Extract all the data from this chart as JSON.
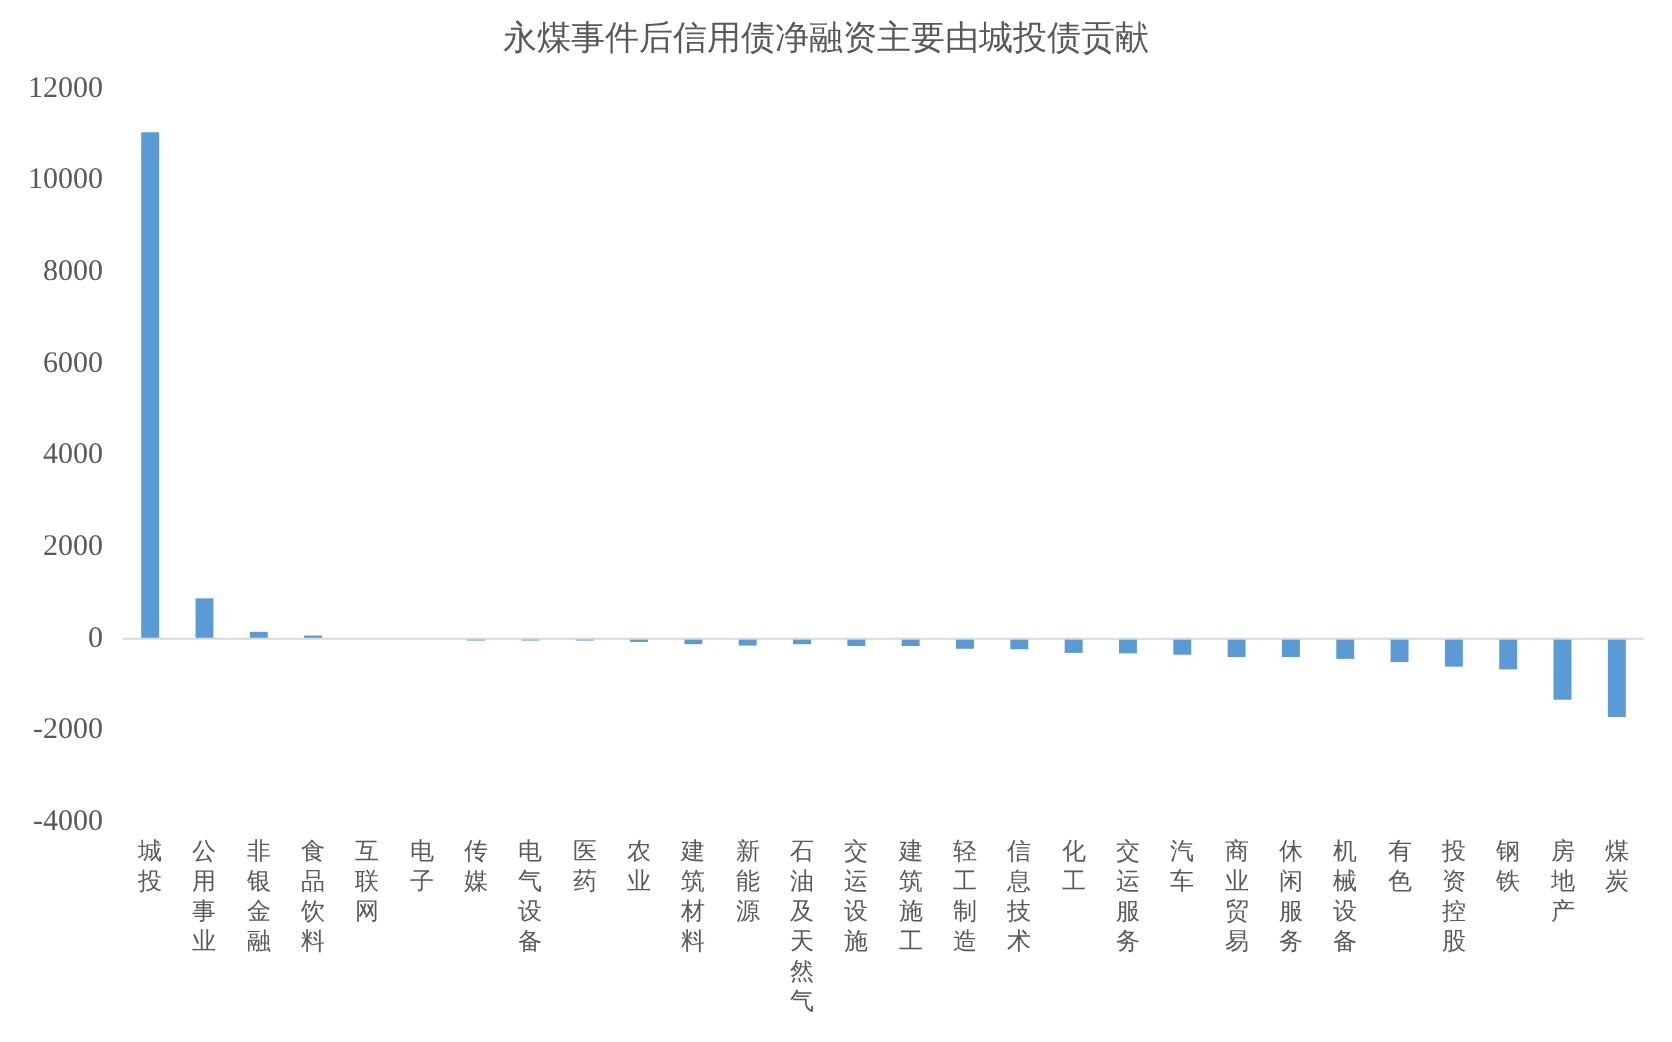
{
  "chart_data": {
    "type": "bar",
    "title": "永煤事件后信用债净融资主要由城投债贡献",
    "categories": [
      "城投",
      "公用事业",
      "非银金融",
      "食品饮料",
      "互联网",
      "电子",
      "传媒",
      "电气设备",
      "医药",
      "农业",
      "建筑材料",
      "新能源",
      "石油及天然气",
      "交运设施",
      "建筑施工",
      "轻工制造",
      "信息技术",
      "化工",
      "交运服务",
      "汽车",
      "商业贸易",
      "休闲服务",
      "机械设备",
      "有色",
      "投资控股",
      "钢铁",
      "房地产",
      "煤炭"
    ],
    "values": [
      11050,
      880,
      150,
      70,
      0,
      0,
      -40,
      -40,
      -40,
      -70,
      -120,
      -150,
      -120,
      -160,
      -160,
      -220,
      -230,
      -310,
      -320,
      -350,
      -400,
      -400,
      -440,
      -510,
      -610,
      -670,
      -1330,
      -1710
    ],
    "color": "#5b9bd5",
    "ylim": [
      -4000,
      12000
    ],
    "yticks": [
      -4000,
      -2000,
      0,
      2000,
      4000,
      6000,
      8000,
      10000,
      12000
    ],
    "grid": false,
    "legend": false,
    "ref_lines": [
      {
        "axis": "y",
        "value": 0,
        "color": "#d9d9d9"
      }
    ]
  }
}
